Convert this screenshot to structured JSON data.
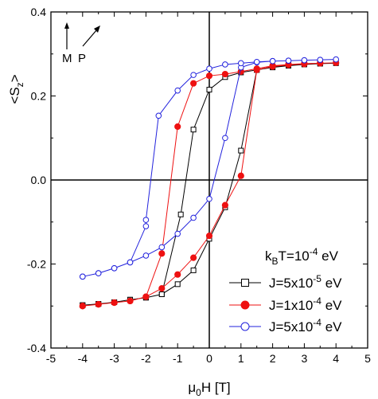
{
  "chart_data": {
    "type": "line",
    "xlabel": {
      "pre": "μ",
      "sub": "0",
      "post": "H [T]"
    },
    "ylabel": {
      "pre": "<S",
      "sub": "z",
      "post": ">"
    },
    "xlim": [
      -5,
      5
    ],
    "ylim": [
      -0.4,
      0.4
    ],
    "xticks": [
      -5,
      -4,
      -3,
      -2,
      -1,
      0,
      1,
      2,
      3,
      4,
      5
    ],
    "yticks": [
      -0.4,
      -0.2,
      0.0,
      0.2,
      0.4
    ],
    "ytick_labels": [
      "-0.4",
      "-0.2",
      "0.0",
      "0.2",
      "0.4"
    ],
    "zero_lines": true,
    "legend": {
      "placement": "bottom-right",
      "header": {
        "pre": "k",
        "sub": "B",
        "mid": "T=10",
        "sup": "-4",
        "post": " eV"
      },
      "entries": [
        {
          "pre": "J=5x10",
          "sup": "-5",
          "post": " eV"
        },
        {
          "pre": "J=1x10",
          "sup": "-4",
          "post": " eV"
        },
        {
          "pre": "J=5x10",
          "sup": "-4",
          "post": " eV"
        }
      ]
    },
    "annotations": {
      "m_label": "M",
      "p_label": "P"
    },
    "series": [
      {
        "color": "#000000",
        "marker": "open-square",
        "points": [
          [
            -4,
            -0.298
          ],
          [
            -3.5,
            -0.295
          ],
          [
            -3,
            -0.291
          ],
          [
            -2.5,
            -0.285
          ],
          [
            -2,
            -0.28
          ],
          [
            -1.5,
            -0.272
          ],
          [
            -1,
            -0.248
          ],
          [
            -0.5,
            -0.215
          ],
          [
            0,
            -0.14
          ],
          [
            0.5,
            -0.065
          ],
          [
            1,
            0.07
          ],
          [
            1.5,
            0.262
          ],
          [
            2,
            0.268
          ],
          [
            2.5,
            0.272
          ],
          [
            3,
            0.275
          ],
          [
            3.5,
            0.277
          ],
          [
            4,
            0.278
          ],
          [
            3.5,
            0.277
          ],
          [
            3,
            0.276
          ],
          [
            2.5,
            0.274
          ],
          [
            2,
            0.27
          ],
          [
            1.5,
            0.262
          ],
          [
            1,
            0.256
          ],
          [
            0.5,
            0.245
          ],
          [
            0,
            0.215
          ],
          [
            -0.5,
            0.12
          ],
          [
            -0.9,
            -0.082
          ],
          [
            -1.5,
            -0.272
          ],
          [
            -2,
            -0.28
          ],
          [
            -2.5,
            -0.285
          ],
          [
            -3,
            -0.291
          ],
          [
            -3.5,
            -0.295
          ],
          [
            -4,
            -0.298
          ]
        ]
      },
      {
        "color": "#ee1111",
        "marker": "filled-circle",
        "points": [
          [
            -4,
            -0.3
          ],
          [
            -3.5,
            -0.296
          ],
          [
            -3,
            -0.292
          ],
          [
            -2.5,
            -0.288
          ],
          [
            -2,
            -0.278
          ],
          [
            -1.5,
            -0.258
          ],
          [
            -1,
            -0.225
          ],
          [
            -0.5,
            -0.185
          ],
          [
            0,
            -0.133
          ],
          [
            0.5,
            -0.06
          ],
          [
            1,
            0.01
          ],
          [
            1.5,
            0.262
          ],
          [
            2,
            0.27
          ],
          [
            2.5,
            0.274
          ],
          [
            3,
            0.276
          ],
          [
            3.5,
            0.278
          ],
          [
            4,
            0.279
          ],
          [
            3.5,
            0.278
          ],
          [
            3,
            0.277
          ],
          [
            2.5,
            0.275
          ],
          [
            2,
            0.272
          ],
          [
            1.5,
            0.265
          ],
          [
            1,
            0.258
          ],
          [
            0.5,
            0.252
          ],
          [
            0,
            0.248
          ],
          [
            -0.5,
            0.23
          ],
          [
            -1,
            0.127
          ],
          [
            -1.5,
            -0.175
          ],
          [
            -2,
            -0.278
          ],
          [
            -2.5,
            -0.288
          ],
          [
            -3,
            -0.292
          ],
          [
            -3.5,
            -0.296
          ],
          [
            -4,
            -0.3
          ]
        ]
      },
      {
        "color": "#2222dd",
        "marker": "open-circle",
        "points": [
          [
            -4,
            -0.23
          ],
          [
            -3.5,
            -0.222
          ],
          [
            -3,
            -0.21
          ],
          [
            -2.5,
            -0.196
          ],
          [
            -2,
            -0.18
          ],
          [
            -1.5,
            -0.16
          ],
          [
            -1,
            -0.128
          ],
          [
            -0.5,
            -0.09
          ],
          [
            0,
            -0.045
          ],
          [
            0.5,
            0.1
          ],
          [
            1,
            0.268
          ],
          [
            1.5,
            0.28
          ],
          [
            2,
            0.283
          ],
          [
            2.5,
            0.284
          ],
          [
            3,
            0.285
          ],
          [
            3.5,
            0.286
          ],
          [
            4,
            0.287
          ],
          [
            3.5,
            0.286
          ],
          [
            3,
            0.285
          ],
          [
            2.5,
            0.284
          ],
          [
            2,
            0.283
          ],
          [
            1.5,
            0.281
          ],
          [
            1,
            0.278
          ],
          [
            0.5,
            0.275
          ],
          [
            0,
            0.265
          ],
          [
            -0.5,
            0.25
          ],
          [
            -1,
            0.213
          ],
          [
            -1.6,
            0.153
          ],
          [
            -2,
            -0.095
          ],
          [
            -2,
            -0.11
          ],
          [
            -2.5,
            -0.196
          ],
          [
            -3,
            -0.21
          ],
          [
            -3.5,
            -0.222
          ],
          [
            -4,
            -0.23
          ]
        ]
      }
    ]
  }
}
